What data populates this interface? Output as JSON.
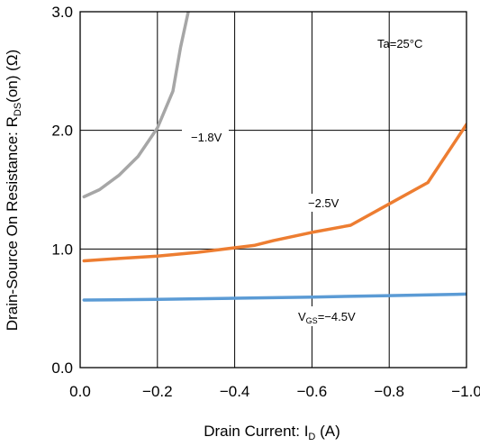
{
  "chart_data": {
    "type": "line",
    "xlabel": {
      "main": "Drain Current: I",
      "sub": "D",
      "tail": " (A)"
    },
    "ylabel": {
      "main": "Drain-Source On Resistance: R",
      "sub": "DS",
      "tail": "(on) (Ω)"
    },
    "xlim": [
      0,
      -1.0
    ],
    "ylim": [
      0,
      3.0
    ],
    "x_ticks": [
      0,
      -0.2,
      -0.4,
      -0.6,
      -0.8,
      -1.0
    ],
    "x_tick_labels": [
      "0.0",
      "−0.2",
      "−0.4",
      "−0.6",
      "−0.8",
      "−1.0"
    ],
    "y_ticks": [
      0,
      1,
      2,
      3
    ],
    "y_tick_labels": [
      "0.0",
      "1.0",
      "2.0",
      "3.0"
    ],
    "grid": true,
    "annotations": {
      "temperature": "Ta=25°C",
      "vgs_prefix": "V",
      "vgs_sub": "GS",
      "vgs_value": "=−4.5V"
    },
    "series": [
      {
        "label": "−1.8V",
        "color": "#a6a6a6",
        "x": [
          -0.01,
          -0.05,
          -0.1,
          -0.15,
          -0.2,
          -0.24,
          -0.26,
          -0.28
        ],
        "y": [
          1.44,
          1.5,
          1.62,
          1.78,
          2.02,
          2.33,
          2.7,
          3.0
        ]
      },
      {
        "label": "−2.5V",
        "color": "#ed7d31",
        "x": [
          -0.01,
          -0.1,
          -0.2,
          -0.3,
          -0.4,
          -0.45,
          -0.5,
          -0.6,
          -0.7,
          -0.8,
          -0.9,
          -1.0
        ],
        "y": [
          0.9,
          0.92,
          0.94,
          0.97,
          1.01,
          1.03,
          1.07,
          1.14,
          1.2,
          1.38,
          1.56,
          2.05
        ]
      },
      {
        "label": "",
        "color": "#5b9bd5",
        "x": [
          -0.01,
          -0.2,
          -0.4,
          -0.6,
          -0.8,
          -1.0
        ],
        "y": [
          0.57,
          0.575,
          0.585,
          0.595,
          0.607,
          0.62
        ]
      }
    ]
  }
}
